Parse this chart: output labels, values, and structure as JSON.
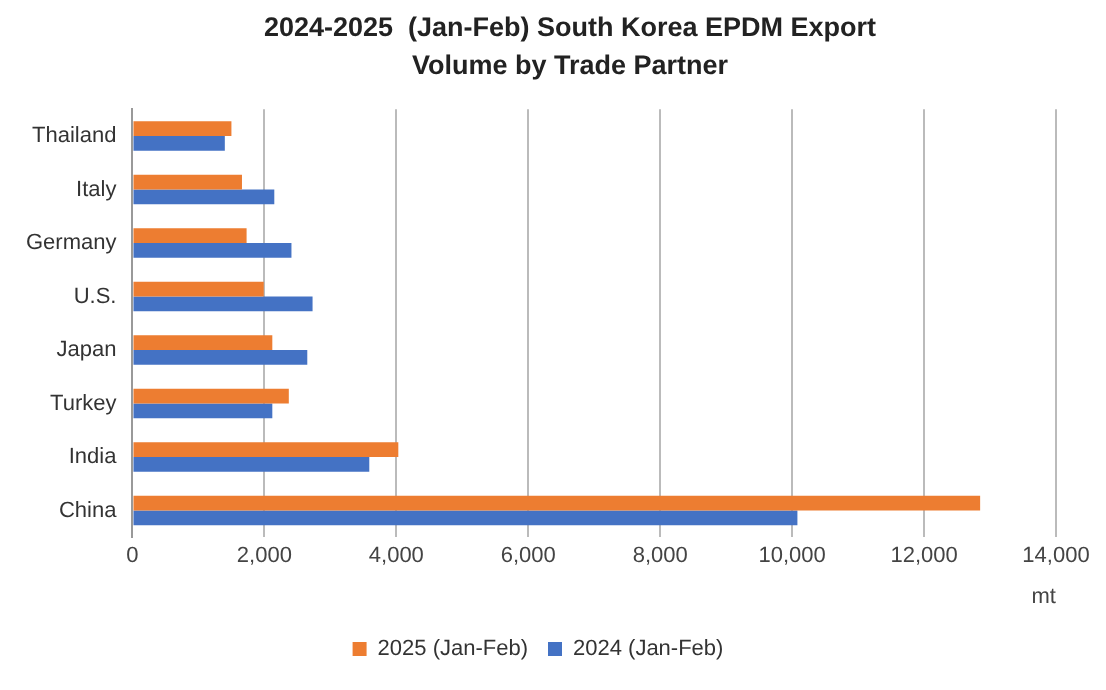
{
  "chart_data": {
    "type": "bar",
    "orientation": "horizontal",
    "title": "2024-2025  (Jan-Feb) South Korea EPDM Export Volume by Trade Partner",
    "xlabel": "mt",
    "categories": [
      "Thailand",
      "Italy",
      "Germany",
      "U.S.",
      "Japan",
      "Turkey",
      "India",
      "China"
    ],
    "series": [
      {
        "name": "2025 (Jan-Feb)",
        "color": "#ed7d31",
        "values": [
          1500,
          1660,
          1730,
          1990,
          2120,
          2370,
          4030,
          12850
        ]
      },
      {
        "name": "2024 (Jan-Feb)",
        "color": "#4472c4",
        "values": [
          1400,
          2150,
          2410,
          2730,
          2650,
          2120,
          3590,
          10080
        ]
      }
    ],
    "xlim": [
      0,
      14000
    ],
    "xticks": [
      0,
      {
        "value": 2000,
        "label": "2,000"
      },
      {
        "value": 4000,
        "label": "4,000"
      },
      {
        "value": 6000,
        "label": "6,000"
      },
      {
        "value": 8000,
        "label": "8,000"
      },
      {
        "value": 10000,
        "label": "10,000"
      },
      {
        "value": 12000,
        "label": "12,000"
      },
      {
        "value": 14000,
        "label": "14,000"
      }
    ],
    "grid": "x",
    "legend": "bottom"
  }
}
